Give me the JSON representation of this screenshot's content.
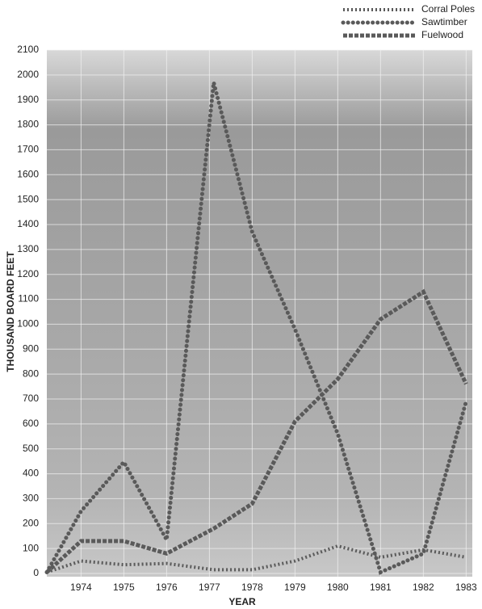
{
  "chart_data": {
    "type": "line",
    "x_label": "YEAR",
    "y_label": "THOUSAND BOARD FEET",
    "x": [
      1973.2,
      1974,
      1975,
      1976,
      1977.1,
      1978,
      1979,
      1980,
      1981,
      1982,
      1983
    ],
    "series": [
      {
        "name": "Corral Poles",
        "color": "#5a5a5a",
        "marker": "diamond",
        "values": [
          5,
          50,
          35,
          40,
          15,
          15,
          50,
          110,
          65,
          95,
          65
        ]
      },
      {
        "name": "Sawtimber",
        "color": "#5a5a5a",
        "marker": "circle",
        "values": [
          5,
          250,
          447,
          135,
          1970,
          1370,
          980,
          560,
          5,
          80,
          690
        ]
      },
      {
        "name": "Fuelwood",
        "color": "#5a5a5a",
        "marker": "square",
        "values": [
          5,
          130,
          130,
          80,
          180,
          280,
          610,
          780,
          1020,
          1130,
          760
        ]
      }
    ],
    "xlim": [
      1973.2,
      1983.05
    ],
    "xticks": [
      1974,
      1975,
      1976,
      1977,
      1978,
      1979,
      1980,
      1981,
      1982,
      1983
    ],
    "ylim": [
      0,
      2100
    ],
    "yticks": [
      0,
      100,
      200,
      300,
      400,
      500,
      600,
      700,
      800,
      900,
      1000,
      1100,
      1200,
      1300,
      1400,
      1500,
      1600,
      1700,
      1800,
      1900,
      2000,
      2100
    ],
    "grid": true,
    "legend": "top-right"
  }
}
